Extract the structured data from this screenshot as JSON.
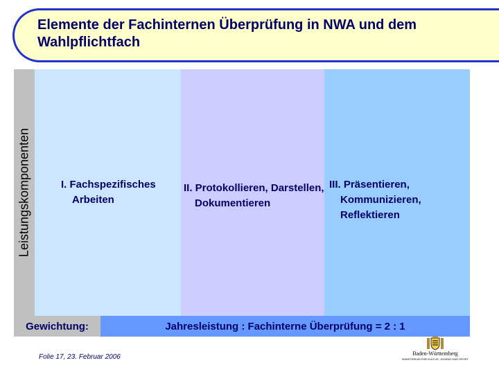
{
  "title": "Elemente der Fachinternen Überprüfung in NWA und dem Wahlpflichtfach",
  "side_label": "Leistungskomponenten",
  "columns": [
    {
      "text": "I. Fachspezifisches Arbeiten"
    },
    {
      "text": "II. Protokollieren, Darstellen, Dokumentieren"
    },
    {
      "text": "III. Präsentieren, Kommunizieren, Reflektieren"
    }
  ],
  "weighting": {
    "label": "Gewichtung:",
    "value": "Jahresleistung : Fachinterne Überprüfung = 2 : 1"
  },
  "footer": "Folie 17, 23. Februar 2006",
  "logo": {
    "icon": "coat-of-arms-icon",
    "name": "Baden-Württemberg",
    "subtitle": "MINISTERIUM FÜR KULTUS, JUGEND UND SPORT"
  },
  "colors": {
    "title_band": "#ffffcc",
    "title_border": "#2233cc",
    "column_1": "#cce6ff",
    "column_2": "#ccccff",
    "column_3": "#99ccff",
    "weighting_bar": "#6699ff",
    "label_gray": "#c0c0c0"
  }
}
